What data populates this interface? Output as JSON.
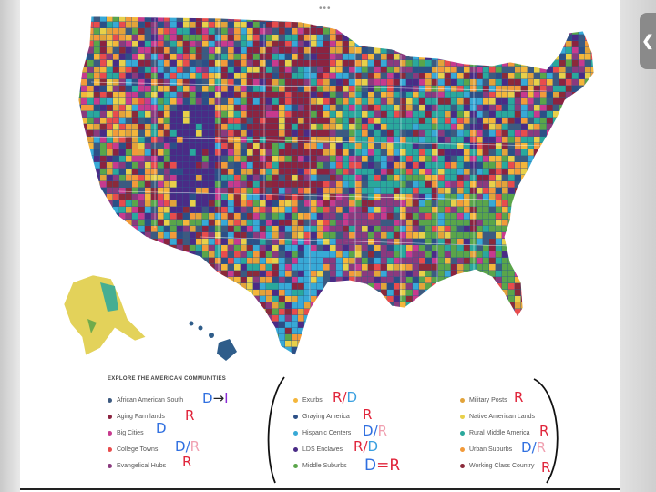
{
  "ui": {
    "handle": "•••",
    "side_tab_glyph": "❮"
  },
  "legend": {
    "title": "EXPLORE THE AMERICAN COMMUNITIES",
    "items": [
      {
        "label": "African American South",
        "color": "#3d5a80"
      },
      {
        "label": "Aging Farmlands",
        "color": "#8b2340"
      },
      {
        "label": "Big Cities",
        "color": "#c73a8e"
      },
      {
        "label": "College Towns",
        "color": "#e84c4c"
      },
      {
        "label": "Evangelical Hubs",
        "color": "#8a3a7e"
      },
      {
        "label": "Exurbs",
        "color": "#f4b63b"
      },
      {
        "label": "Graying America",
        "color": "#2c4f86"
      },
      {
        "label": "Hispanic Centers",
        "color": "#38a9d6"
      },
      {
        "label": "LDS Enclaves",
        "color": "#4a2b86"
      },
      {
        "label": "Middle Suburbs",
        "color": "#5aa54a"
      },
      {
        "label": "Military Posts",
        "color": "#e2a33a"
      },
      {
        "label": "Native American Lands",
        "color": "#e8d04a"
      },
      {
        "label": "Rural Middle America",
        "color": "#2aa89c"
      },
      {
        "label": "Urban Suburbs",
        "color": "#f29a3a"
      },
      {
        "label": "Working Class Country",
        "color": "#8b2a3a"
      }
    ]
  },
  "annotations": {
    "african_american_south": [
      "D",
      "→",
      "I"
    ],
    "aging_farmlands": [
      "R"
    ],
    "big_cities": [
      "D"
    ],
    "college_towns": [
      "D",
      "/",
      "R"
    ],
    "evangelical_hubs": [
      "R"
    ],
    "exurbs": [
      "R",
      "/",
      "D"
    ],
    "graying_america": [
      "R"
    ],
    "hispanic_centers": [
      "D",
      "/",
      "R"
    ],
    "lds_enclaves": [
      "R",
      "/",
      "D"
    ],
    "middle_suburbs": [
      "D",
      "=",
      "R"
    ],
    "military_posts": [
      "R"
    ],
    "rural_middle_america": [
      "R"
    ],
    "urban_suburbs": [
      "D",
      "/",
      "R"
    ],
    "working_class_country": [
      "R"
    ]
  },
  "annotation_colors": {
    "democrat": "#2f6fe0",
    "republican": "#e0243a",
    "independent": "#8a2bd6",
    "pink": "#f0a0b0"
  }
}
